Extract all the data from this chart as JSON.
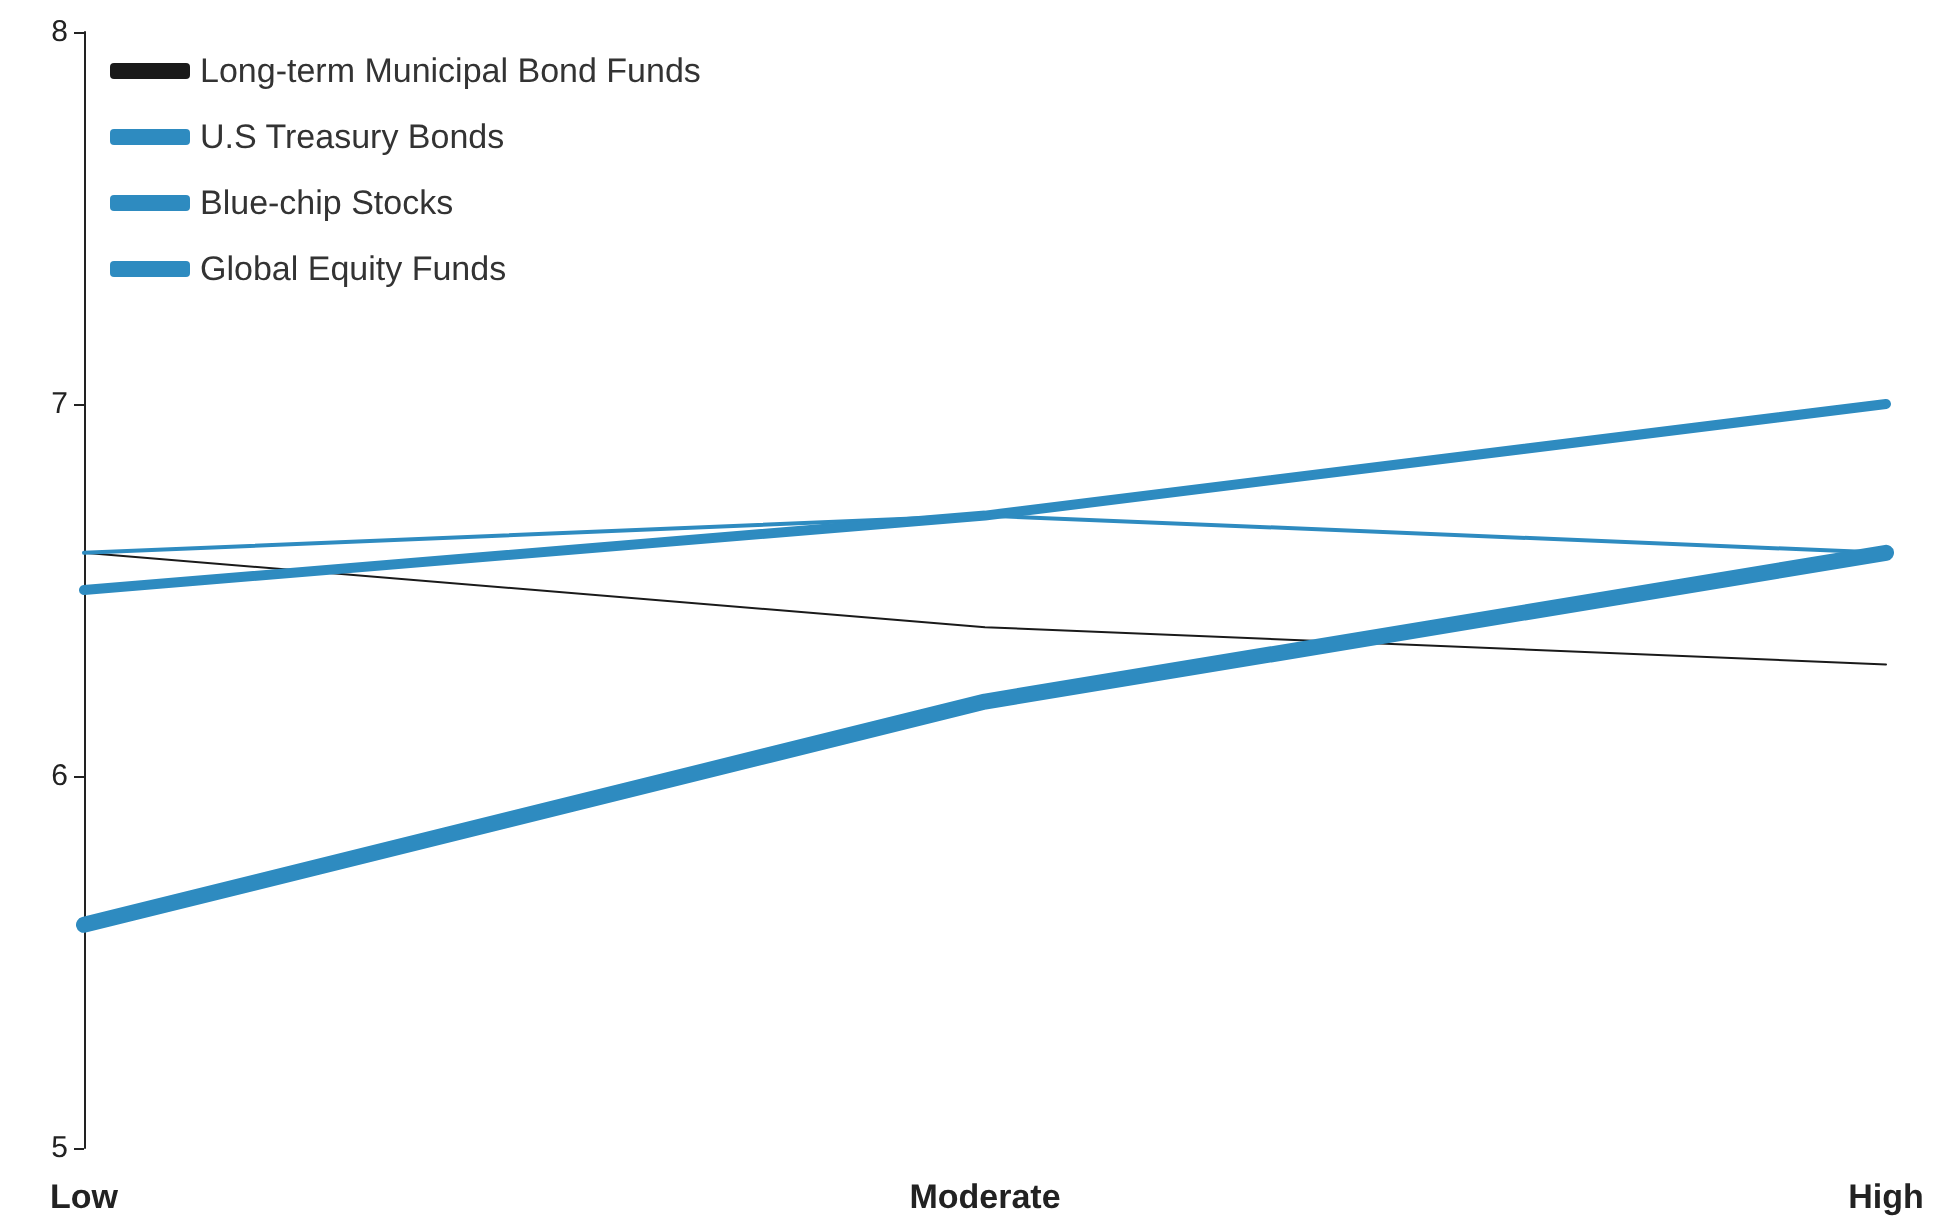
{
  "chart_data": {
    "type": "line",
    "categories": [
      "Low",
      "Moderate",
      "High"
    ],
    "series": [
      {
        "name": "Long-term Municipal Bond Funds",
        "color": "#1a1a1a",
        "values": [
          6.6,
          6.4,
          6.3
        ]
      },
      {
        "name": "U.S Treasury Bonds",
        "color": "#2e8bc0",
        "values": [
          6.6,
          6.7,
          6.6
        ]
      },
      {
        "name": "Blue-chip Stocks",
        "color": "#2e8bc0",
        "values": [
          6.5,
          6.7,
          7.0
        ]
      },
      {
        "name": "Global Equity Funds",
        "color": "#2e8bc0",
        "values": [
          5.6,
          6.2,
          6.6
        ]
      }
    ],
    "ylim": [
      5,
      8
    ],
    "yticks": [
      5,
      6,
      7,
      8
    ],
    "grid": false,
    "legend": "top left",
    "marker": "none",
    "line_style": "solid"
  }
}
